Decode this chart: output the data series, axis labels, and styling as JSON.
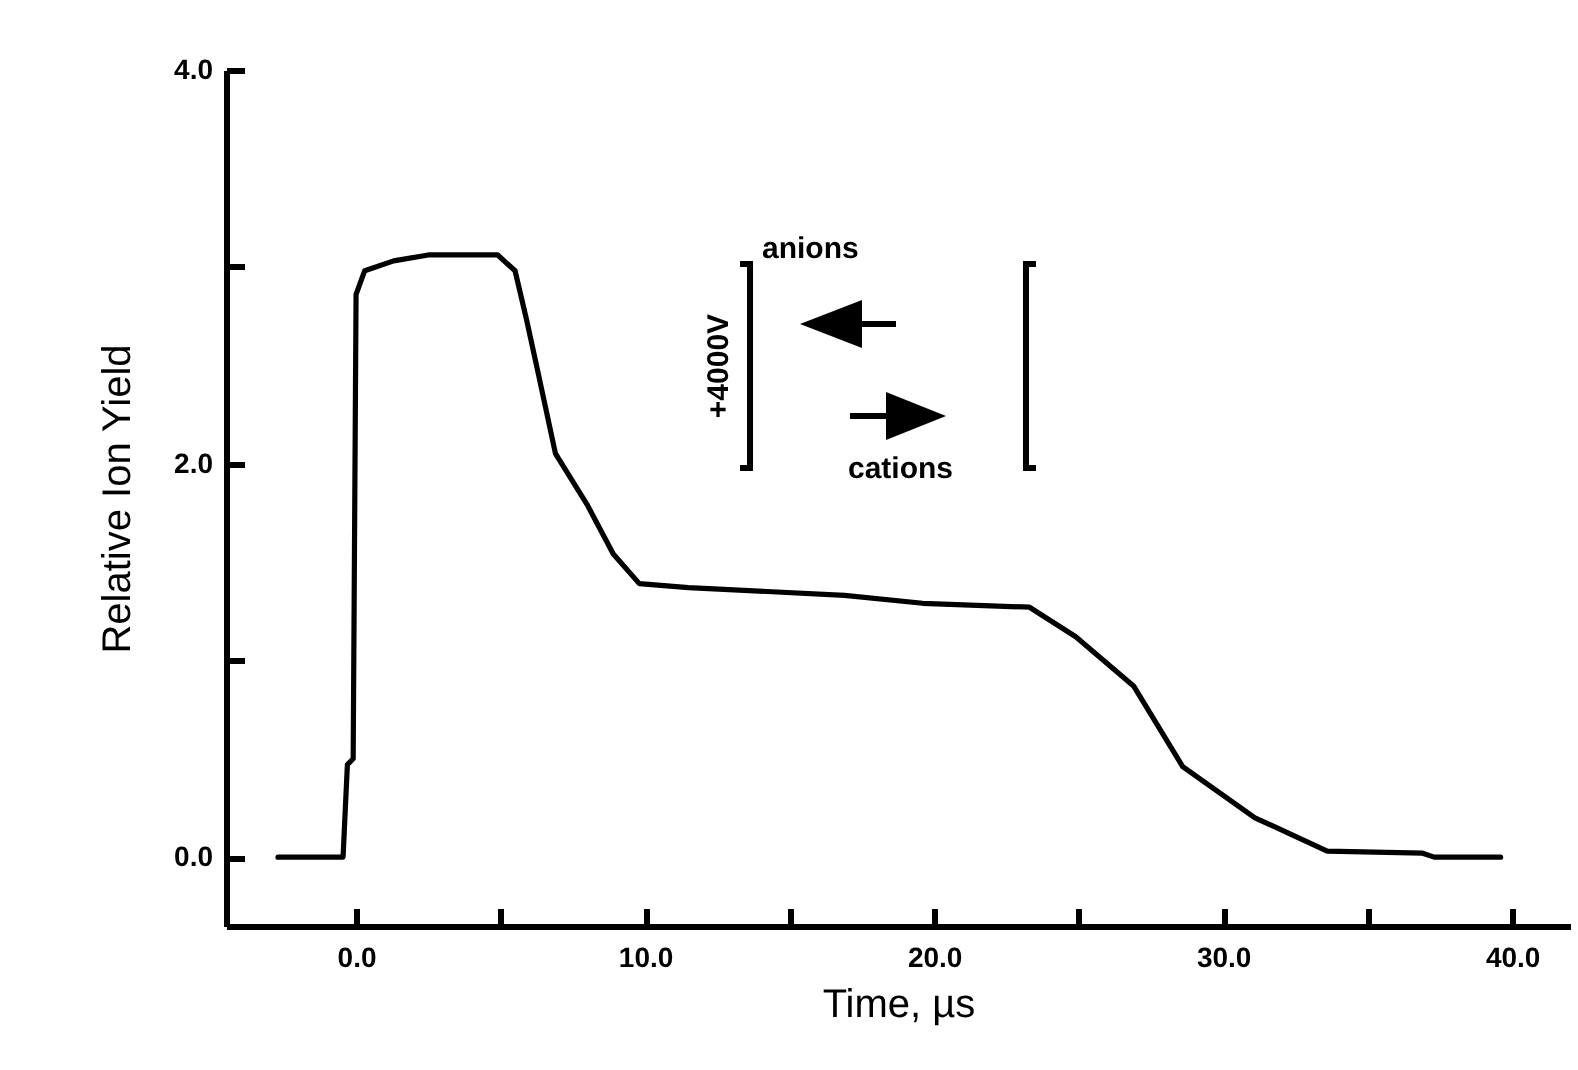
{
  "chart_data": {
    "type": "line",
    "xlabel": "Time, µs",
    "ylabel": "Relative Ion Yield",
    "x": [
      -2.7,
      -0.45,
      -0.3,
      -0.1,
      0.0,
      0.3,
      1.3,
      2.5,
      4.9,
      5.5,
      5.9,
      6.3,
      6.9,
      8.0,
      8.9,
      9.8,
      11.5,
      16.9,
      19.6,
      23.3,
      24.9,
      26.9,
      28.6,
      31.1,
      33.6,
      36.9,
      37.3,
      39.6
    ],
    "series": [
      {
        "color": "#000000",
        "values": [
          0,
          0,
          0.47,
          0.5,
          2.86,
          2.98,
          3.03,
          3.06,
          3.06,
          2.98,
          2.73,
          2.46,
          2.05,
          1.79,
          1.54,
          1.39,
          1.37,
          1.33,
          1.29,
          1.27,
          1.12,
          0.87,
          0.46,
          0.2,
          0.03,
          0.02,
          0,
          0
        ]
      }
    ],
    "xlim": [
      -4.5,
      42
    ],
    "ylim": [
      -0.35,
      4.0
    ],
    "xticks": [
      {
        "value": 0,
        "label": "0.0"
      },
      {
        "value": 5,
        "label": null
      },
      {
        "value": 10,
        "label": "10.0"
      },
      {
        "value": 15,
        "label": null
      },
      {
        "value": 20,
        "label": "20.0"
      },
      {
        "value": 25,
        "label": null
      },
      {
        "value": 30,
        "label": "30.0"
      },
      {
        "value": 35,
        "label": null
      },
      {
        "value": 40,
        "label": "40.0"
      }
    ],
    "yticks": [
      {
        "value": 0,
        "label": "0.0"
      },
      {
        "value": 1,
        "label": null
      },
      {
        "value": 2,
        "label": "2.0"
      },
      {
        "value": 3,
        "label": null
      },
      {
        "value": 4,
        "label": "4.0"
      }
    ],
    "annotations": [
      "+4000V",
      "anions",
      "cations"
    ]
  }
}
